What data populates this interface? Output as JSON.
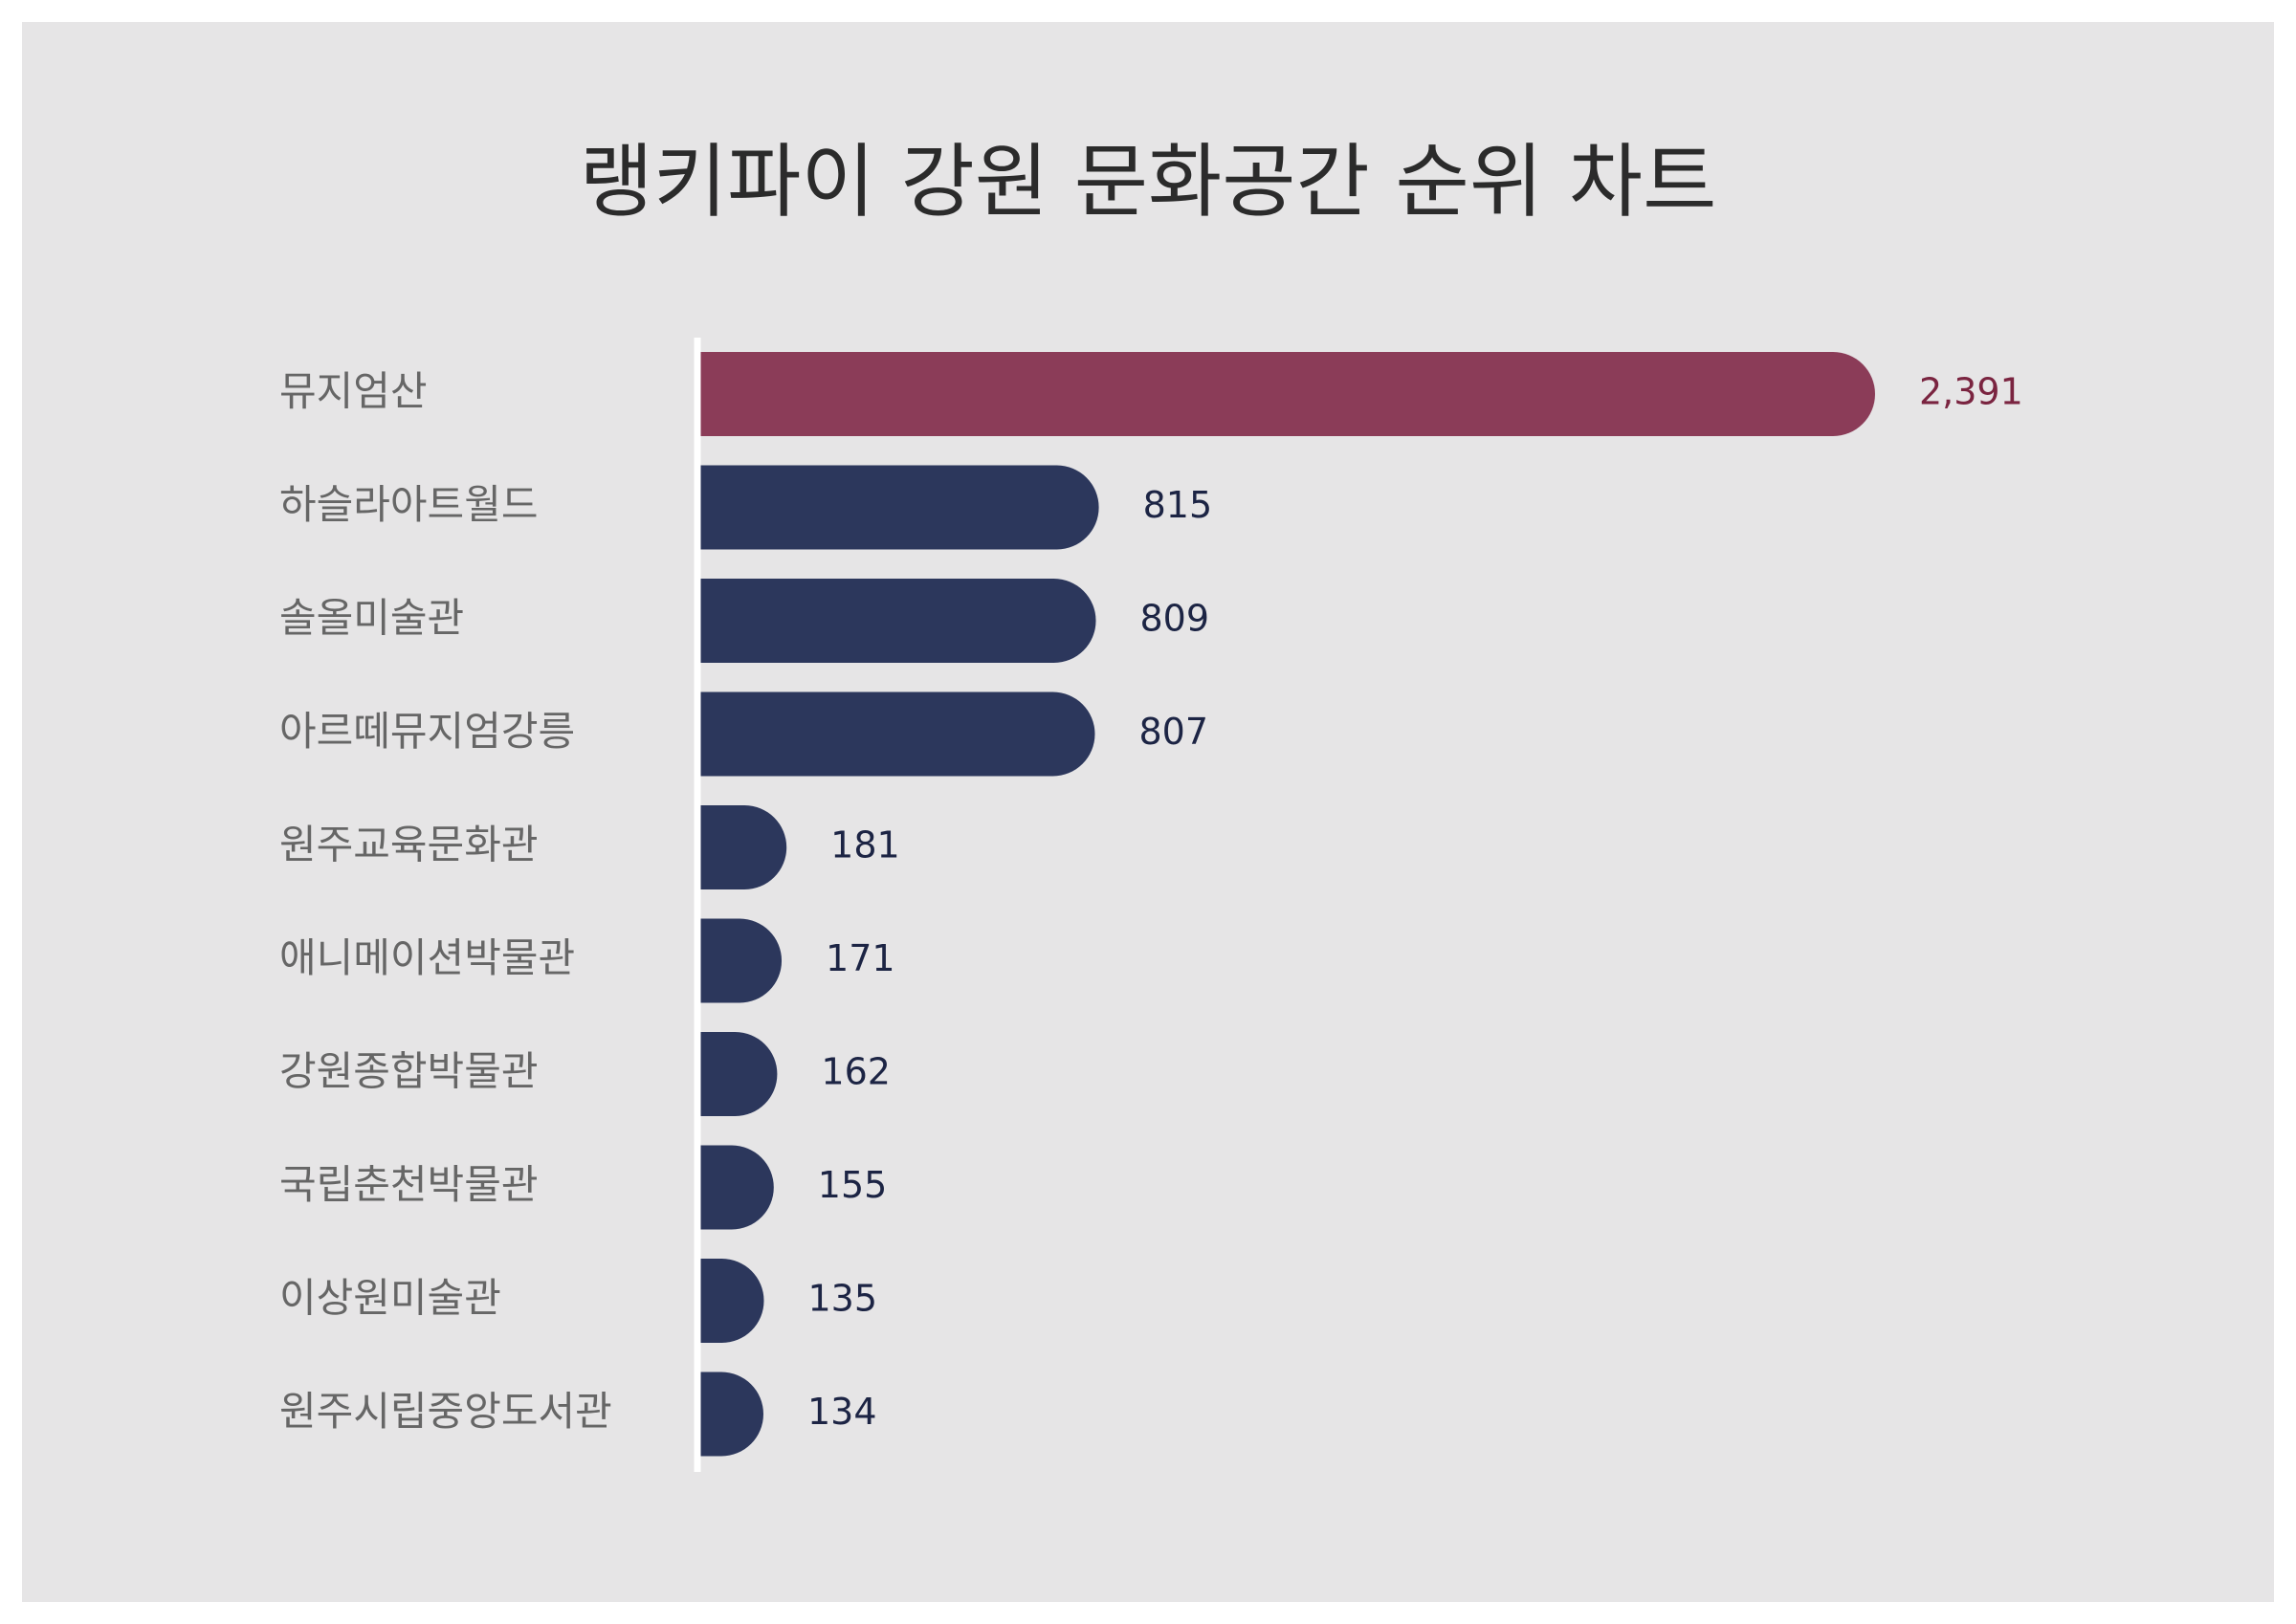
{
  "chart_data": {
    "type": "bar",
    "orientation": "horizontal",
    "title": "랭키파이 강원 문화공간 순위 차트",
    "xlabel": "",
    "ylabel": "",
    "categories": [
      "뮤지엄산",
      "하슬라아트월드",
      "솔올미술관",
      "아르떼뮤지엄강릉",
      "원주교육문화관",
      "애니메이션박물관",
      "강원종합박물관",
      "국립춘천박물관",
      "이상원미술관",
      "원주시립중앙도서관"
    ],
    "value_labels": [
      "2,391",
      "815",
      "809",
      "807",
      "181",
      "171",
      "162",
      "155",
      "135",
      "134"
    ],
    "series": [
      {
        "values": [
          2391,
          815,
          809,
          807,
          181,
          171,
          162,
          155,
          135,
          134
        ]
      }
    ],
    "xlim": [
      0,
      2391
    ],
    "grid": false,
    "legend": "none",
    "colors": {
      "highlight_bar": "#8b3c58",
      "highlight_label": "#7a2440",
      "bar": "#2c375c",
      "value_label": "#1c2444",
      "category_label": "#666666",
      "axis_line": "#ffffff",
      "background": "#e6e5e6",
      "title": "#2b2b2b"
    }
  }
}
